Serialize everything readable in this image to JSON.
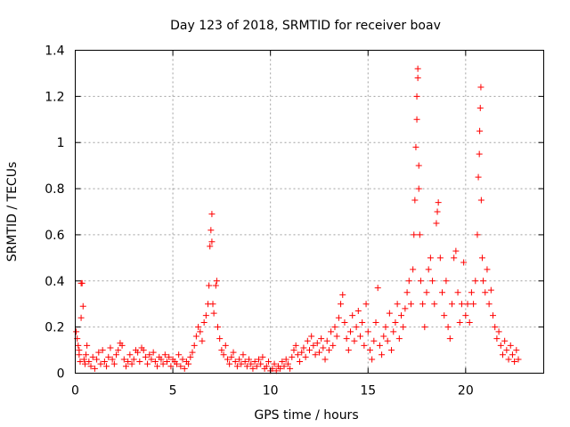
{
  "chart_data": {
    "type": "scatter",
    "title": "Day 123 of 2018, SRMTID for receiver boav",
    "xlabel": "GPS time / hours",
    "ylabel": "SRMTID / TECUs",
    "xlim": [
      0,
      24
    ],
    "ylim": [
      0,
      1.4
    ],
    "xticks": [
      0,
      5,
      10,
      15,
      20
    ],
    "xtick_labels": [
      "0",
      "5",
      "10",
      "15",
      "20"
    ],
    "yticks": [
      0,
      0.2,
      0.4,
      0.6,
      0.8,
      1.0,
      1.2,
      1.4
    ],
    "ytick_labels": [
      "0",
      "0.2",
      "0.4",
      "0.6",
      "0.8",
      "1",
      "1.2",
      "1.4"
    ],
    "grid": true,
    "marker": "+",
    "color": "#ff0000",
    "series": [
      {
        "name": "SRMTID",
        "points": [
          [
            0.05,
            0.18
          ],
          [
            0.1,
            0.15
          ],
          [
            0.15,
            0.12
          ],
          [
            0.2,
            0.08
          ],
          [
            0.25,
            0.05
          ],
          [
            0.3,
            0.39
          ],
          [
            0.35,
            0.39
          ],
          [
            0.4,
            0.29
          ],
          [
            0.3,
            0.24
          ],
          [
            0.2,
            0.1
          ],
          [
            0.45,
            0.06
          ],
          [
            0.5,
            0.04
          ],
          [
            0.55,
            0.08
          ],
          [
            0.6,
            0.12
          ],
          [
            0.7,
            0.05
          ],
          [
            0.8,
            0.03
          ],
          [
            0.9,
            0.07
          ],
          [
            1.0,
            0.02
          ],
          [
            1.1,
            0.06
          ],
          [
            1.2,
            0.09
          ],
          [
            1.3,
            0.04
          ],
          [
            1.4,
            0.1
          ],
          [
            1.5,
            0.05
          ],
          [
            1.6,
            0.03
          ],
          [
            1.7,
            0.07
          ],
          [
            1.8,
            0.11
          ],
          [
            1.9,
            0.06
          ],
          [
            2.0,
            0.04
          ],
          [
            2.1,
            0.08
          ],
          [
            2.2,
            0.1
          ],
          [
            2.3,
            0.13
          ],
          [
            2.4,
            0.12
          ],
          [
            2.5,
            0.06
          ],
          [
            2.6,
            0.03
          ],
          [
            2.7,
            0.05
          ],
          [
            2.8,
            0.08
          ],
          [
            2.9,
            0.04
          ],
          [
            3.0,
            0.06
          ],
          [
            3.1,
            0.1
          ],
          [
            3.2,
            0.09
          ],
          [
            3.3,
            0.05
          ],
          [
            3.4,
            0.11
          ],
          [
            3.5,
            0.1
          ],
          [
            3.6,
            0.07
          ],
          [
            3.7,
            0.04
          ],
          [
            3.8,
            0.08
          ],
          [
            3.9,
            0.06
          ],
          [
            4.0,
            0.09
          ],
          [
            4.1,
            0.05
          ],
          [
            4.2,
            0.03
          ],
          [
            4.3,
            0.07
          ],
          [
            4.4,
            0.06
          ],
          [
            4.5,
            0.04
          ],
          [
            4.6,
            0.08
          ],
          [
            4.7,
            0.05
          ],
          [
            4.8,
            0.07
          ],
          [
            4.9,
            0.03
          ],
          [
            5.0,
            0.06
          ],
          [
            5.1,
            0.05
          ],
          [
            5.2,
            0.04
          ],
          [
            5.3,
            0.08
          ],
          [
            5.4,
            0.03
          ],
          [
            5.5,
            0.06
          ],
          [
            5.6,
            0.02
          ],
          [
            5.7,
            0.05
          ],
          [
            5.8,
            0.04
          ],
          [
            5.9,
            0.07
          ],
          [
            6.0,
            0.09
          ],
          [
            6.1,
            0.12
          ],
          [
            6.2,
            0.16
          ],
          [
            6.3,
            0.2
          ],
          [
            6.4,
            0.18
          ],
          [
            6.5,
            0.14
          ],
          [
            6.6,
            0.22
          ],
          [
            6.7,
            0.25
          ],
          [
            6.8,
            0.3
          ],
          [
            6.85,
            0.38
          ],
          [
            6.9,
            0.55
          ],
          [
            6.95,
            0.62
          ],
          [
            7.0,
            0.69
          ],
          [
            7.0,
            0.57
          ],
          [
            7.05,
            0.3
          ],
          [
            7.1,
            0.26
          ],
          [
            7.2,
            0.38
          ],
          [
            7.25,
            0.4
          ],
          [
            7.3,
            0.2
          ],
          [
            7.4,
            0.15
          ],
          [
            7.5,
            0.1
          ],
          [
            7.6,
            0.08
          ],
          [
            7.7,
            0.12
          ],
          [
            7.8,
            0.06
          ],
          [
            7.9,
            0.04
          ],
          [
            8.0,
            0.07
          ],
          [
            8.1,
            0.09
          ],
          [
            8.2,
            0.05
          ],
          [
            8.3,
            0.03
          ],
          [
            8.4,
            0.06
          ],
          [
            8.5,
            0.04
          ],
          [
            8.6,
            0.08
          ],
          [
            8.7,
            0.05
          ],
          [
            8.8,
            0.03
          ],
          [
            8.9,
            0.06
          ],
          [
            9.0,
            0.04
          ],
          [
            9.1,
            0.02
          ],
          [
            9.2,
            0.05
          ],
          [
            9.3,
            0.03
          ],
          [
            9.4,
            0.06
          ],
          [
            9.5,
            0.04
          ],
          [
            9.6,
            0.07
          ],
          [
            9.7,
            0.02
          ],
          [
            9.8,
            0.03
          ],
          [
            9.9,
            0.05
          ],
          [
            10.0,
            0.01
          ],
          [
            10.1,
            0.02
          ],
          [
            10.2,
            0.04
          ],
          [
            10.3,
            0.01
          ],
          [
            10.4,
            0.03
          ],
          [
            10.5,
            0.02
          ],
          [
            10.6,
            0.05
          ],
          [
            10.7,
            0.03
          ],
          [
            10.8,
            0.06
          ],
          [
            10.9,
            0.04
          ],
          [
            11.0,
            0.02
          ],
          [
            11.1,
            0.07
          ],
          [
            11.2,
            0.1
          ],
          [
            11.3,
            0.12
          ],
          [
            11.4,
            0.08
          ],
          [
            11.5,
            0.05
          ],
          [
            11.6,
            0.09
          ],
          [
            11.7,
            0.11
          ],
          [
            11.8,
            0.07
          ],
          [
            11.9,
            0.14
          ],
          [
            12.0,
            0.1
          ],
          [
            12.1,
            0.16
          ],
          [
            12.2,
            0.12
          ],
          [
            12.3,
            0.08
          ],
          [
            12.4,
            0.13
          ],
          [
            12.5,
            0.09
          ],
          [
            12.6,
            0.15
          ],
          [
            12.7,
            0.11
          ],
          [
            12.8,
            0.06
          ],
          [
            12.9,
            0.14
          ],
          [
            13.0,
            0.1
          ],
          [
            13.1,
            0.18
          ],
          [
            13.2,
            0.12
          ],
          [
            13.3,
            0.2
          ],
          [
            13.4,
            0.16
          ],
          [
            13.5,
            0.24
          ],
          [
            13.6,
            0.3
          ],
          [
            13.7,
            0.34
          ],
          [
            13.8,
            0.22
          ],
          [
            13.9,
            0.15
          ],
          [
            14.0,
            0.1
          ],
          [
            14.1,
            0.18
          ],
          [
            14.2,
            0.25
          ],
          [
            14.3,
            0.14
          ],
          [
            14.4,
            0.2
          ],
          [
            14.5,
            0.27
          ],
          [
            14.6,
            0.16
          ],
          [
            14.7,
            0.22
          ],
          [
            14.8,
            0.12
          ],
          [
            14.9,
            0.3
          ],
          [
            15.0,
            0.18
          ],
          [
            15.1,
            0.1
          ],
          [
            15.2,
            0.06
          ],
          [
            15.3,
            0.14
          ],
          [
            15.4,
            0.22
          ],
          [
            15.5,
            0.37
          ],
          [
            15.6,
            0.12
          ],
          [
            15.7,
            0.08
          ],
          [
            15.8,
            0.16
          ],
          [
            15.9,
            0.2
          ],
          [
            16.0,
            0.14
          ],
          [
            16.1,
            0.26
          ],
          [
            16.2,
            0.1
          ],
          [
            16.3,
            0.18
          ],
          [
            16.4,
            0.22
          ],
          [
            16.5,
            0.3
          ],
          [
            16.6,
            0.15
          ],
          [
            16.7,
            0.25
          ],
          [
            16.8,
            0.2
          ],
          [
            16.9,
            0.28
          ],
          [
            17.0,
            0.35
          ],
          [
            17.1,
            0.4
          ],
          [
            17.2,
            0.3
          ],
          [
            17.3,
            0.45
          ],
          [
            17.35,
            0.6
          ],
          [
            17.4,
            0.75
          ],
          [
            17.45,
            0.98
          ],
          [
            17.5,
            1.1
          ],
          [
            17.5,
            1.2
          ],
          [
            17.55,
            1.28
          ],
          [
            17.55,
            1.32
          ],
          [
            17.6,
            0.9
          ],
          [
            17.6,
            0.8
          ],
          [
            17.65,
            0.6
          ],
          [
            17.7,
            0.4
          ],
          [
            17.8,
            0.3
          ],
          [
            17.9,
            0.2
          ],
          [
            18.0,
            0.35
          ],
          [
            18.1,
            0.45
          ],
          [
            18.2,
            0.5
          ],
          [
            18.3,
            0.4
          ],
          [
            18.4,
            0.3
          ],
          [
            18.5,
            0.65
          ],
          [
            18.55,
            0.7
          ],
          [
            18.6,
            0.74
          ],
          [
            18.7,
            0.5
          ],
          [
            18.8,
            0.35
          ],
          [
            18.9,
            0.25
          ],
          [
            19.0,
            0.4
          ],
          [
            19.1,
            0.2
          ],
          [
            19.2,
            0.15
          ],
          [
            19.3,
            0.3
          ],
          [
            19.4,
            0.5
          ],
          [
            19.5,
            0.53
          ],
          [
            19.6,
            0.35
          ],
          [
            19.7,
            0.22
          ],
          [
            19.8,
            0.3
          ],
          [
            19.9,
            0.48
          ],
          [
            20.0,
            0.25
          ],
          [
            20.1,
            0.3
          ],
          [
            20.2,
            0.22
          ],
          [
            20.3,
            0.35
          ],
          [
            20.4,
            0.3
          ],
          [
            20.5,
            0.4
          ],
          [
            20.6,
            0.6
          ],
          [
            20.65,
            0.85
          ],
          [
            20.7,
            0.95
          ],
          [
            20.72,
            1.05
          ],
          [
            20.75,
            1.15
          ],
          [
            20.78,
            1.24
          ],
          [
            20.8,
            0.75
          ],
          [
            20.85,
            0.5
          ],
          [
            20.9,
            0.4
          ],
          [
            21.0,
            0.35
          ],
          [
            21.1,
            0.45
          ],
          [
            21.2,
            0.3
          ],
          [
            21.3,
            0.36
          ],
          [
            21.4,
            0.25
          ],
          [
            21.5,
            0.2
          ],
          [
            21.6,
            0.15
          ],
          [
            21.7,
            0.18
          ],
          [
            21.8,
            0.12
          ],
          [
            21.9,
            0.08
          ],
          [
            22.0,
            0.14
          ],
          [
            22.1,
            0.1
          ],
          [
            22.2,
            0.06
          ],
          [
            22.3,
            0.12
          ],
          [
            22.4,
            0.08
          ],
          [
            22.5,
            0.05
          ],
          [
            22.6,
            0.1
          ],
          [
            22.7,
            0.06
          ]
        ]
      }
    ]
  }
}
